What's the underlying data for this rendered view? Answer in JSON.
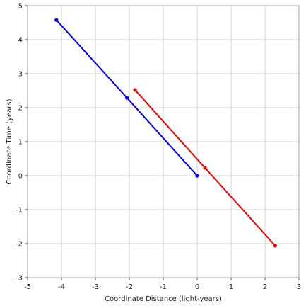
{
  "chart_data": {
    "type": "line",
    "title": "",
    "xlabel": "Coordinate Distance (light-years)",
    "ylabel": "Coordinate Time (years)",
    "xlim": [
      -5,
      3
    ],
    "ylim": [
      -3,
      5
    ],
    "xticks": [
      -5,
      -4,
      -3,
      -2,
      -1,
      0,
      1,
      2,
      3
    ],
    "yticks": [
      -3,
      -2,
      -1,
      0,
      1,
      2,
      3,
      4,
      5
    ],
    "grid": true,
    "legend": "none",
    "series": [
      {
        "color": "#0000ee",
        "points": [
          [
            -4.15,
            4.58
          ],
          [
            -2.07,
            2.29
          ],
          [
            0.0,
            0.0
          ]
        ]
      },
      {
        "color": "#ee0000",
        "points": [
          [
            -1.83,
            2.52
          ],
          [
            0.23,
            0.23
          ],
          [
            2.3,
            -2.06
          ]
        ]
      }
    ]
  }
}
